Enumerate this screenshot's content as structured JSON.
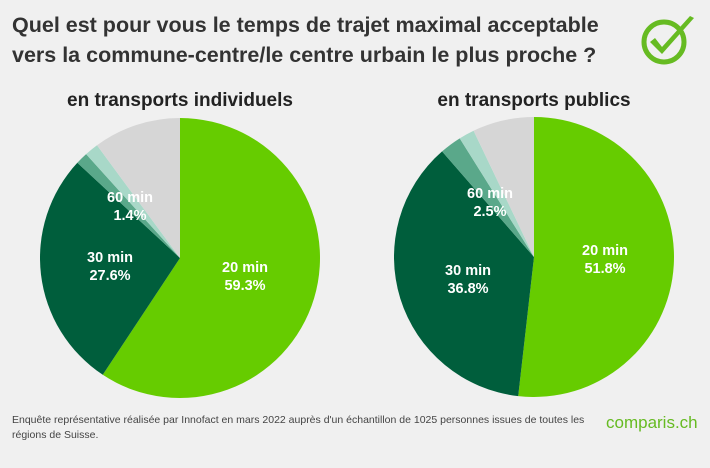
{
  "title": "Quel est pour vous le temps de trajet maximal acceptable vers la commune-centre/le centre urbain le plus proche ?",
  "footer": "Enquête représentative réalisée par Innofact en mars 2022 auprès d'un échantillon de 1025 personnes issues de toutes les régions de Suisse.",
  "logo_text": "comparis.ch",
  "colors": {
    "green": "#66cc00",
    "dark_green": "#005e3c",
    "medium_green": "#5aa88a",
    "light_green": "#a8d8c8",
    "gray": "#d6d6d6",
    "logo": "#66bb22"
  },
  "chart_data": [
    {
      "type": "pie",
      "title": "en transports individuels",
      "slices": [
        {
          "label": "20 min",
          "value": 59.3,
          "value_label": "59.3%",
          "color": "#66cc00"
        },
        {
          "label": "30 min",
          "value": 27.6,
          "value_label": "27.6%",
          "color": "#005e3c"
        },
        {
          "label": "60 min",
          "value": 1.4,
          "value_label": "1.4%",
          "color": "#5aa88a"
        },
        {
          "label": "",
          "value": 1.6,
          "value_label": "",
          "color": "#a8d8c8"
        },
        {
          "label": "",
          "value": 10.1,
          "value_label": "",
          "color": "#d6d6d6"
        }
      ]
    },
    {
      "type": "pie",
      "title": "en transports publics",
      "slices": [
        {
          "label": "20 min",
          "value": 51.8,
          "value_label": "51.8%",
          "color": "#66cc00"
        },
        {
          "label": "30 min",
          "value": 36.8,
          "value_label": "36.8%",
          "color": "#005e3c"
        },
        {
          "label": "60 min",
          "value": 2.5,
          "value_label": "2.5%",
          "color": "#5aa88a"
        },
        {
          "label": "",
          "value": 1.8,
          "value_label": "",
          "color": "#a8d8c8"
        },
        {
          "label": "",
          "value": 7.1,
          "value_label": "",
          "color": "#d6d6d6"
        }
      ]
    }
  ]
}
